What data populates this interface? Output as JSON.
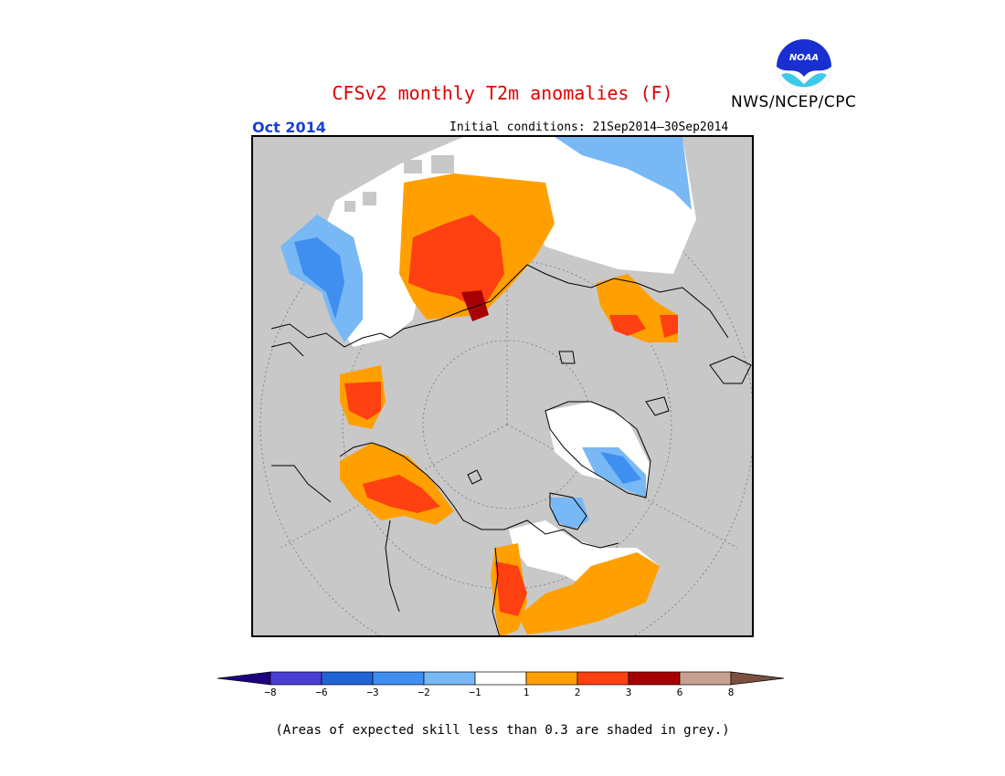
{
  "header": {
    "title": "CFSv2 monthly T2m anomalies (F)",
    "agency": "NWS/NCEP/CPC",
    "logo_text": "NOAA",
    "month": "Oct 2014",
    "initial_conditions": "Initial conditions: 21Sep2014–30Sep2014"
  },
  "colorbar": {
    "colors": [
      "#1c0080",
      "#4a3dd6",
      "#1e64d6",
      "#3f8ff0",
      "#78b8f5",
      "#ffffff",
      "#ffa000",
      "#ff4010",
      "#a80000",
      "#c8a090",
      "#7a5040"
    ],
    "tick_labels": [
      "−8",
      "−6",
      "−3",
      "−2",
      "−1",
      "1",
      "2",
      "3",
      "6",
      "8"
    ]
  },
  "map": {
    "skill_shade_color": "#c8c8c8",
    "background": "#c8c8c8"
  },
  "footnote": "(Areas of expected skill less than 0.3 are shaded in grey.)"
}
